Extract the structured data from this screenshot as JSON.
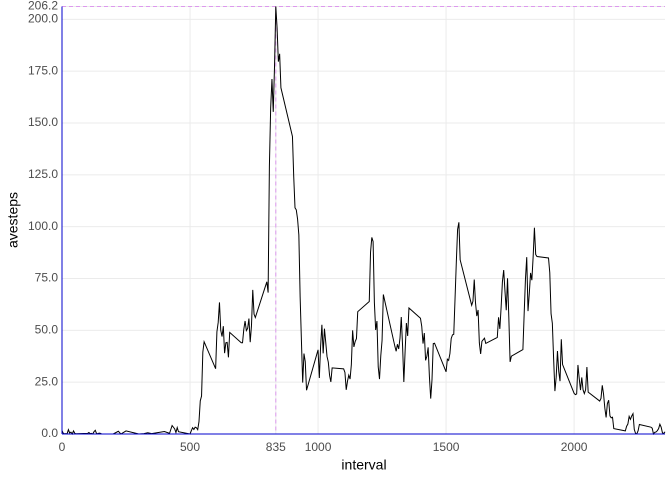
{
  "chart_data": {
    "type": "line",
    "x_label": "interval",
    "y_label": "avesteps",
    "series": [
      {
        "name": "avesteps",
        "color": "#000000",
        "x": [
          0,
          5,
          10,
          15,
          20,
          25,
          30,
          35,
          40,
          45,
          50,
          55,
          100,
          105,
          110,
          115,
          120,
          125,
          130,
          135,
          140,
          145,
          150,
          155,
          200,
          220,
          230,
          250,
          300,
          320,
          335,
          350,
          400,
          420,
          430,
          440,
          445,
          450,
          455,
          500,
          505,
          510,
          515,
          520,
          525,
          530,
          535,
          540,
          545,
          550,
          555,
          600,
          605,
          610,
          615,
          620,
          625,
          630,
          635,
          640,
          645,
          650,
          655,
          700,
          705,
          710,
          715,
          720,
          725,
          730,
          735,
          740,
          745,
          750,
          755,
          800,
          805,
          810,
          815,
          820,
          825,
          830,
          835,
          840,
          845,
          850,
          855,
          900,
          905,
          910,
          915,
          920,
          925,
          930,
          935,
          940,
          945,
          950,
          955,
          1000,
          1005,
          1010,
          1015,
          1020,
          1025,
          1030,
          1035,
          1040,
          1045,
          1050,
          1055,
          1100,
          1105,
          1110,
          1115,
          1120,
          1125,
          1130,
          1135,
          1140,
          1145,
          1150,
          1155,
          1200,
          1205,
          1210,
          1215,
          1220,
          1225,
          1230,
          1235,
          1240,
          1245,
          1250,
          1255,
          1300,
          1305,
          1310,
          1315,
          1320,
          1325,
          1330,
          1335,
          1340,
          1345,
          1350,
          1355,
          1400,
          1405,
          1410,
          1415,
          1420,
          1425,
          1430,
          1435,
          1440,
          1445,
          1450,
          1455,
          1500,
          1505,
          1510,
          1515,
          1520,
          1525,
          1530,
          1535,
          1540,
          1545,
          1550,
          1555,
          1600,
          1605,
          1610,
          1615,
          1620,
          1625,
          1630,
          1635,
          1640,
          1645,
          1650,
          1655,
          1700,
          1705,
          1710,
          1715,
          1720,
          1725,
          1730,
          1735,
          1740,
          1745,
          1750,
          1755,
          1800,
          1805,
          1810,
          1815,
          1820,
          1825,
          1830,
          1835,
          1840,
          1845,
          1850,
          1855,
          1900,
          1905,
          1910,
          1915,
          1920,
          1925,
          1930,
          1935,
          1940,
          1945,
          1950,
          1955,
          2000,
          2005,
          2010,
          2015,
          2020,
          2025,
          2030,
          2035,
          2040,
          2045,
          2050,
          2055,
          2100,
          2105,
          2110,
          2115,
          2120,
          2125,
          2130,
          2135,
          2140,
          2145,
          2150,
          2155,
          2200,
          2205,
          2210,
          2215,
          2220,
          2225,
          2230,
          2235,
          2240,
          2245,
          2250,
          2255,
          2300,
          2305,
          2310,
          2315,
          2320,
          2325,
          2330,
          2335,
          2340,
          2345,
          2350,
          2355
        ],
        "values": [
          1.7,
          0.3,
          0.1,
          0.2,
          0.1,
          2.1,
          0.5,
          0.9,
          0,
          1.5,
          0.3,
          0.1,
          0.3,
          0.7,
          0.2,
          0.3,
          0,
          1.1,
          1.8,
          0.2,
          0.2,
          0.4,
          0.3,
          0,
          0,
          1.3,
          0,
          1.5,
          0,
          0.2,
          0.6,
          0.2,
          1.2,
          0.3,
          4.1,
          2.5,
          0.7,
          3.1,
          1.1,
          0,
          1.6,
          3,
          2.2,
          3.3,
          3,
          2.1,
          6,
          16,
          18.3,
          39.5,
          44.5,
          31.5,
          49.3,
          53.8,
          63.5,
          50,
          47,
          52,
          39,
          44,
          44.2,
          37,
          49,
          44,
          44,
          50.5,
          54.5,
          49.9,
          50.9,
          55.7,
          44.3,
          52.3,
          69.5,
          57.8,
          56.2,
          73.4,
          68.2,
          129.4,
          157.5,
          171.2,
          155.4,
          177.3,
          206.2,
          195.9,
          179.6,
          183.4,
          167,
          143.5,
          124,
          109.1,
          108.1,
          103.7,
          96,
          66.2,
          45.2,
          24.8,
          38.8,
          34.9,
          21.1,
          40.6,
          27,
          42.4,
          52.7,
          38.9,
          50.8,
          44.3,
          37.4,
          34.7,
          28.3,
          25.1,
          31.9,
          31.4,
          29.7,
          21.3,
          25.5,
          28.4,
          26.5,
          33.4,
          50,
          42,
          44.6,
          46,
          59,
          63.9,
          87.7,
          94.8,
          92.8,
          63.4,
          50.2,
          54.5,
          32.4,
          26.5,
          37.7,
          45.1,
          67.3,
          42.3,
          39.9,
          43.3,
          41,
          46.2,
          56.4,
          42.8,
          25.1,
          39.9,
          53.5,
          47.3,
          60.8,
          55.8,
          51.9,
          43.6,
          48.7,
          35.5,
          37.5,
          41.8,
          27.5,
          17.1,
          26.1,
          43.6,
          43.8,
          30,
          36.1,
          35.5,
          38.8,
          46,
          47.8,
          48.1,
          65.3,
          82.9,
          98.7,
          102.1,
          84,
          62.1,
          64.1,
          74.5,
          63.2,
          56.9,
          59.8,
          43.9,
          38.6,
          44.7,
          45.5,
          46.2,
          43.7,
          46.6,
          56.3,
          50.7,
          61.2,
          73.4,
          79.1,
          68.9,
          59.7,
          75.1,
          56.5,
          34.8,
          37.5,
          40.7,
          58,
          74.7,
          85.3,
          59.3,
          67.8,
          77.7,
          74.2,
          85.3,
          99.5,
          86.6,
          85.6,
          84.9,
          77.8,
          58,
          53.4,
          36.3,
          20.7,
          27.4,
          40,
          30.2,
          25.5,
          45.7,
          33.5,
          19.6,
          19,
          19.3,
          33.3,
          26.8,
          21.2,
          27.3,
          21.3,
          19.5,
          21.3,
          32.3,
          20.2,
          15.9,
          17.2,
          23.5,
          19.2,
          12.5,
          8,
          14.7,
          16.3,
          8.7,
          7.8,
          8.1,
          2.6,
          1.5,
          3.7,
          4.8,
          8.5,
          7.1,
          8.7,
          9.8,
          2.2,
          0.3,
          0.1,
          1.6,
          4.6,
          3.3,
          2.8,
          0,
          0.8,
          1,
          1.6,
          2.6,
          4.7,
          3.3,
          0.6,
          0.2,
          1.1
        ]
      }
    ],
    "xlim": [
      0,
      2355
    ],
    "ylim": [
      0,
      206.2
    ],
    "xticks": [
      0,
      500,
      835,
      1000,
      1500,
      2000
    ],
    "yticks": [
      {
        "value": 0,
        "label": "0.0"
      },
      {
        "value": 25,
        "label": "25.0"
      },
      {
        "value": 50,
        "label": "50.0"
      },
      {
        "value": 75,
        "label": "75.0"
      },
      {
        "value": 100,
        "label": "100.0"
      },
      {
        "value": 125,
        "label": "125.0"
      },
      {
        "value": 150,
        "label": "150.0"
      },
      {
        "value": 175,
        "label": "175.0"
      },
      {
        "value": 200,
        "label": "200.0"
      },
      206.2
    ],
    "grid": true,
    "reference_lines": {
      "x": 835,
      "y": 206.2,
      "color": "#dd99ee"
    },
    "axis_color": "#0000cc"
  }
}
